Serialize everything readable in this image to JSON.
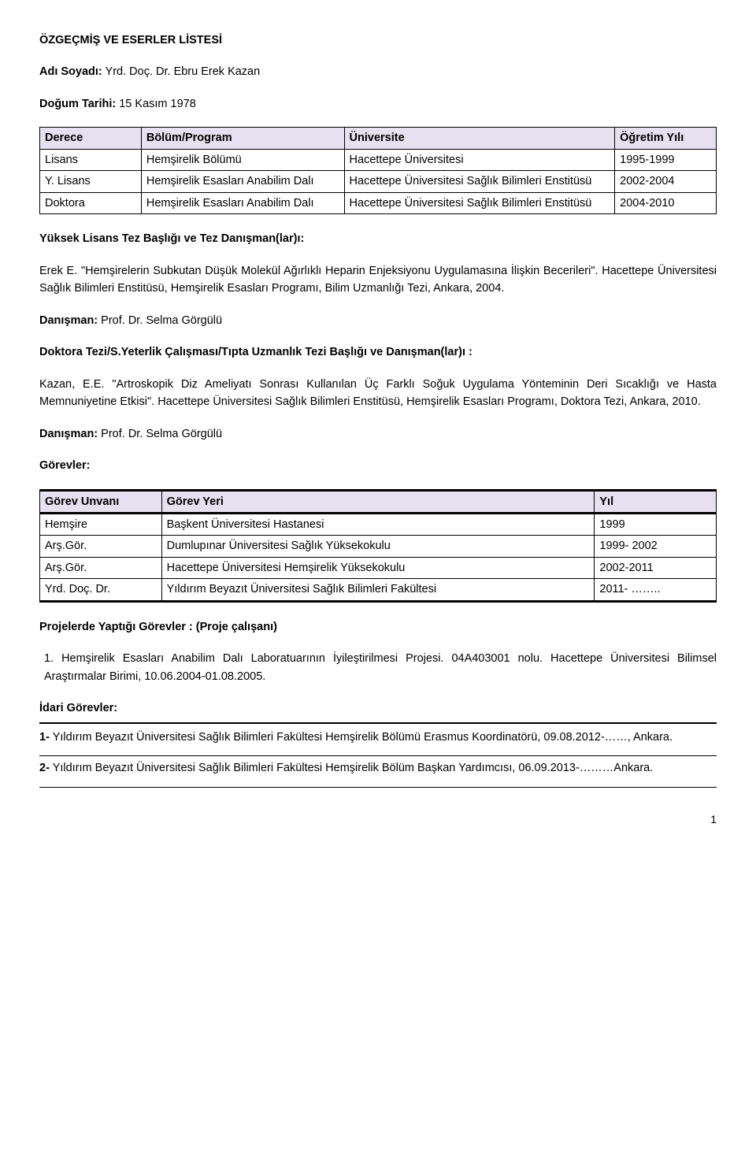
{
  "header": {
    "title": "ÖZGEÇMİŞ VE ESERLER LİSTESİ",
    "name_label": "Adı Soyadı:",
    "name_value": "Yrd. Doç. Dr. Ebru Erek Kazan",
    "birth_label": "Doğum Tarihi:",
    "birth_value": "15 Kasım 1978"
  },
  "edu_table": {
    "headers": [
      "Derece",
      "Bölüm/Program",
      "Üniversite",
      "Öğretim Yılı"
    ],
    "rows": [
      [
        "Lisans",
        "Hemşirelik Bölümü",
        "Hacettepe Üniversitesi",
        "1995-1999"
      ],
      [
        "Y. Lisans",
        "Hemşirelik Esasları Anabilim Dalı",
        "Hacettepe Üniversitesi Sağlık Bilimleri Enstitüsü",
        "2002-2004"
      ],
      [
        "Doktora",
        "Hemşirelik Esasları Anabilim Dalı",
        "Hacettepe Üniversitesi Sağlık Bilimleri Enstitüsü",
        "2004-2010"
      ]
    ],
    "col_widths": [
      "15%",
      "30%",
      "40%",
      "15%"
    ]
  },
  "ms_section": {
    "heading": "Yüksek Lisans Tez Başlığı ve Tez Danışman(lar)ı:",
    "body": "Erek E. \"Hemşirelerin Subkutan Düşük Molekül Ağırlıklı Heparin Enjeksiyonu Uygulamasına İlişkin Becerileri\". Hacettepe Üniversitesi Sağlık Bilimleri Enstitüsü, Hemşirelik Esasları Programı, Bilim Uzmanlığı Tezi, Ankara, 2004.",
    "advisor_label": "Danışman:",
    "advisor": "Prof. Dr. Selma Görgülü"
  },
  "phd_section": {
    "heading": "Doktora Tezi/S.Yeterlik Çalışması/Tıpta Uzmanlık Tezi Başlığı ve  Danışman(lar)ı :",
    "body": "Kazan, E.E. \"Artroskopik Diz Ameliyatı Sonrası Kullanılan Üç Farklı Soğuk Uygulama Yönteminin Deri Sıcaklığı ve Hasta Memnuniyetine Etkisi\". Hacettepe Üniversitesi Sağlık Bilimleri Enstitüsü, Hemşirelik Esasları Programı, Doktora Tezi, Ankara, 2010.",
    "advisor_label": "Danışman:",
    "advisor": "Prof. Dr. Selma Görgülü"
  },
  "gorev_heading": "Görevler:",
  "gorev_table": {
    "headers": [
      "Görev Unvanı",
      "Görev Yeri",
      "Yıl"
    ],
    "rows": [
      [
        "Hemşire",
        "Başkent Üniversitesi Hastanesi",
        "1999"
      ],
      [
        "Arş.Gör.",
        "Dumlupınar Üniversitesi Sağlık Yüksekokulu",
        "1999- 2002"
      ],
      [
        "Arş.Gör.",
        "Hacettepe Üniversitesi Hemşirelik Yüksekokulu",
        "2002-2011"
      ],
      [
        "Yrd. Doç. Dr.",
        "Yıldırım Beyazıt Üniversitesi Sağlık Bilimleri Fakültesi",
        "2011- …….."
      ]
    ],
    "col_widths": [
      "18%",
      "64%",
      "18%"
    ]
  },
  "proj_heading": "Projelerde Yaptığı Görevler : (Proje çalışanı)",
  "proj_item": "1.  Hemşirelik Esasları Anabilim Dalı Laboratuarının İyileştirilmesi Projesi. 04A403001 nolu. Hacettepe Üniversitesi Bilimsel Araştırmalar Birimi, 10.06.2004-01.08.2005.",
  "idari": {
    "heading": "İdari Görevler:",
    "item1_prefix": "1-",
    "item1_body": "Yıldırım Beyazıt Üniversitesi Sağlık Bilimleri Fakültesi Hemşirelik Bölümü Erasmus Koordinatörü, 09.08.2012-……, Ankara.",
    "item2_prefix": "2-",
    "item2_body": "Yıldırım Beyazıt Üniversitesi Sağlık Bilimleri Fakültesi Hemşirelik Bölüm Başkan Yardımcısı, 06.09.2013-………Ankara."
  },
  "page_number": "1"
}
